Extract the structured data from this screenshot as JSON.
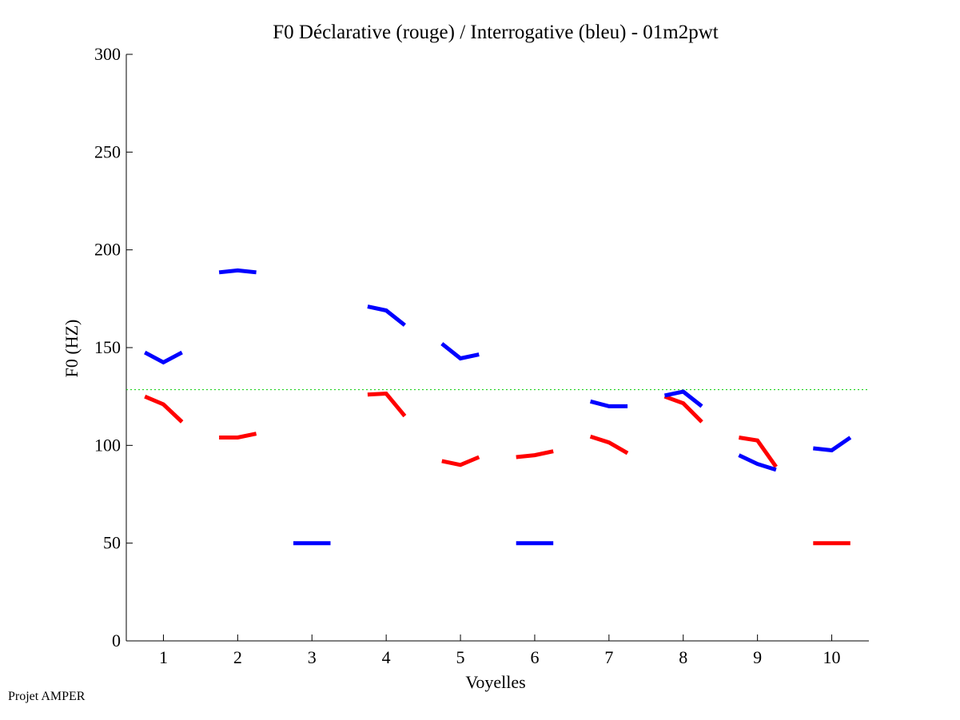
{
  "footer": "Projet AMPER",
  "chart_data": {
    "type": "line",
    "title": "F0 Déclarative (rouge) / Interrogative (bleu) - 01m2pwt",
    "xlabel": "Voyelles",
    "ylabel": "F0 (HZ)",
    "xlim": [
      0.5,
      10.5
    ],
    "ylim": [
      0,
      300
    ],
    "xticks": [
      1,
      2,
      3,
      4,
      5,
      6,
      7,
      8,
      9,
      10
    ],
    "yticks": [
      0,
      50,
      100,
      150,
      200,
      250,
      300
    ],
    "reference_line": {
      "y": 128.5,
      "color": "#00cc00",
      "style": "dotted"
    },
    "series": [
      {
        "name": "Déclarative (rouge)",
        "color": "#ff0000",
        "segments": [
          [
            [
              0.75,
              125
            ],
            [
              1.0,
              121
            ],
            [
              1.25,
              112
            ]
          ],
          [
            [
              1.75,
              104
            ],
            [
              2.0,
              104
            ],
            [
              2.25,
              106
            ]
          ],
          [
            [
              3.75,
              126
            ],
            [
              4.0,
              126.5
            ],
            [
              4.25,
              115
            ]
          ],
          [
            [
              4.75,
              92
            ],
            [
              5.0,
              90
            ],
            [
              5.25,
              94
            ]
          ],
          [
            [
              5.75,
              94
            ],
            [
              6.0,
              95
            ],
            [
              6.25,
              97
            ]
          ],
          [
            [
              6.75,
              104.5
            ],
            [
              7.0,
              101.5
            ],
            [
              7.25,
              96
            ]
          ],
          [
            [
              7.75,
              125
            ],
            [
              8.0,
              121.5
            ],
            [
              8.25,
              112
            ]
          ],
          [
            [
              8.75,
              104
            ],
            [
              9.0,
              102.5
            ],
            [
              9.25,
              89
            ]
          ],
          [
            [
              9.75,
              50
            ],
            [
              10.0,
              50
            ],
            [
              10.25,
              50
            ]
          ]
        ]
      },
      {
        "name": "Interrogative (bleu)",
        "color": "#0000ff",
        "segments": [
          [
            [
              0.75,
              147.5
            ],
            [
              1.0,
              142.5
            ],
            [
              1.25,
              147.5
            ]
          ],
          [
            [
              1.75,
              188.5
            ],
            [
              2.0,
              189.5
            ],
            [
              2.25,
              188.5
            ]
          ],
          [
            [
              2.75,
              50
            ],
            [
              3.0,
              50
            ],
            [
              3.25,
              50
            ]
          ],
          [
            [
              3.75,
              171
            ],
            [
              4.0,
              169
            ],
            [
              4.25,
              161.5
            ]
          ],
          [
            [
              4.75,
              152
            ],
            [
              5.0,
              144.5
            ],
            [
              5.25,
              146.5
            ]
          ],
          [
            [
              5.75,
              50
            ],
            [
              6.0,
              50
            ],
            [
              6.25,
              50
            ]
          ],
          [
            [
              6.75,
              122.5
            ],
            [
              7.0,
              120
            ],
            [
              7.25,
              120
            ]
          ],
          [
            [
              7.75,
              125.5
            ],
            [
              8.0,
              127.5
            ],
            [
              8.25,
              120
            ]
          ],
          [
            [
              8.75,
              95
            ],
            [
              9.0,
              90.5
            ],
            [
              9.25,
              87.5
            ]
          ],
          [
            [
              9.75,
              98.5
            ],
            [
              10.0,
              97.5
            ],
            [
              10.25,
              104
            ]
          ]
        ]
      }
    ]
  }
}
